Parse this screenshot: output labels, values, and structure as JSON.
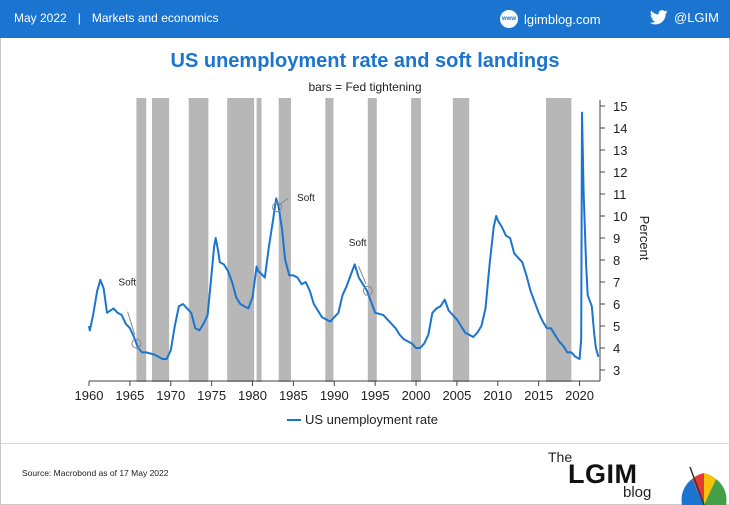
{
  "header": {
    "date": "May 2022",
    "separator": "|",
    "section": "Markets and economics",
    "site_icon": "www-globe-icon",
    "site_label": "lgimblog.com",
    "social_icon": "twitter-bird-icon",
    "social_label": "@LGIM",
    "bar_color": "#1b75d0"
  },
  "chart_data": {
    "type": "line",
    "title": "US unemployment rate and soft landings",
    "subtitle": "bars = Fed tightening",
    "ylabel": "Percent",
    "xlabel": "",
    "xlim": [
      1960,
      2022.5
    ],
    "ylim": [
      3,
      15
    ],
    "x_ticks": [
      1960,
      1965,
      1970,
      1975,
      1980,
      1985,
      1990,
      1995,
      2000,
      2005,
      2010,
      2015,
      2020
    ],
    "y_ticks": [
      3,
      4,
      5,
      6,
      7,
      8,
      9,
      10,
      11,
      12,
      13,
      14,
      15
    ],
    "y_axis_side": "right",
    "grid": false,
    "legend_position": "bottom-center",
    "line_color": "#1b75d0",
    "bar_color": "#b7b7b7",
    "tightening_periods": [
      [
        1965.8,
        1967.0
      ],
      [
        1967.7,
        1969.8
      ],
      [
        1972.2,
        1974.6
      ],
      [
        1976.9,
        1980.2
      ],
      [
        1980.5,
        1981.1
      ],
      [
        1983.2,
        1984.7
      ],
      [
        1988.9,
        1989.9
      ],
      [
        1994.1,
        1995.2
      ],
      [
        1999.4,
        2000.6
      ],
      [
        2004.5,
        2006.5
      ],
      [
        2015.9,
        2019.0
      ]
    ],
    "annotations": [
      {
        "label": "Soft",
        "x": 1965.8,
        "y": 4.2
      },
      {
        "label": "Soft",
        "x": 1983.0,
        "y": 10.4
      },
      {
        "label": "Soft",
        "x": 1994.1,
        "y": 6.6
      }
    ],
    "series": [
      {
        "name": "US unemployment rate",
        "points": [
          [
            1960.0,
            5.0
          ],
          [
            1960.1,
            4.8
          ],
          [
            1960.5,
            5.5
          ],
          [
            1961.0,
            6.6
          ],
          [
            1961.4,
            7.1
          ],
          [
            1961.8,
            6.7
          ],
          [
            1962.2,
            5.6
          ],
          [
            1963.0,
            5.8
          ],
          [
            1963.5,
            5.6
          ],
          [
            1964.0,
            5.5
          ],
          [
            1964.5,
            5.1
          ],
          [
            1965.0,
            4.9
          ],
          [
            1965.5,
            4.5
          ],
          [
            1966.0,
            4.0
          ],
          [
            1966.5,
            3.8
          ],
          [
            1967.0,
            3.8
          ],
          [
            1968.0,
            3.7
          ],
          [
            1969.0,
            3.5
          ],
          [
            1969.5,
            3.5
          ],
          [
            1970.0,
            3.9
          ],
          [
            1970.5,
            5.0
          ],
          [
            1971.0,
            5.9
          ],
          [
            1971.5,
            6.0
          ],
          [
            1972.0,
            5.8
          ],
          [
            1972.5,
            5.6
          ],
          [
            1973.0,
            4.9
          ],
          [
            1973.5,
            4.8
          ],
          [
            1974.0,
            5.1
          ],
          [
            1974.5,
            5.5
          ],
          [
            1974.9,
            7.0
          ],
          [
            1975.3,
            8.6
          ],
          [
            1975.5,
            9.0
          ],
          [
            1975.8,
            8.4
          ],
          [
            1976.0,
            7.9
          ],
          [
            1976.5,
            7.8
          ],
          [
            1977.0,
            7.5
          ],
          [
            1977.5,
            7.0
          ],
          [
            1978.0,
            6.3
          ],
          [
            1978.5,
            6.0
          ],
          [
            1979.0,
            5.9
          ],
          [
            1979.5,
            5.8
          ],
          [
            1980.0,
            6.3
          ],
          [
            1980.5,
            7.7
          ],
          [
            1980.7,
            7.5
          ],
          [
            1981.0,
            7.4
          ],
          [
            1981.5,
            7.2
          ],
          [
            1982.0,
            8.6
          ],
          [
            1982.5,
            9.8
          ],
          [
            1982.9,
            10.8
          ],
          [
            1983.2,
            10.4
          ],
          [
            1983.6,
            9.4
          ],
          [
            1984.0,
            8.0
          ],
          [
            1984.5,
            7.3
          ],
          [
            1985.0,
            7.3
          ],
          [
            1985.5,
            7.2
          ],
          [
            1986.0,
            6.9
          ],
          [
            1986.5,
            7.0
          ],
          [
            1987.0,
            6.6
          ],
          [
            1987.5,
            6.0
          ],
          [
            1988.0,
            5.7
          ],
          [
            1988.5,
            5.4
          ],
          [
            1989.0,
            5.3
          ],
          [
            1989.5,
            5.2
          ],
          [
            1990.0,
            5.4
          ],
          [
            1990.5,
            5.6
          ],
          [
            1991.0,
            6.4
          ],
          [
            1991.5,
            6.8
          ],
          [
            1992.0,
            7.3
          ],
          [
            1992.5,
            7.8
          ],
          [
            1993.0,
            7.2
          ],
          [
            1993.5,
            6.9
          ],
          [
            1994.0,
            6.6
          ],
          [
            1994.5,
            6.1
          ],
          [
            1995.0,
            5.6
          ],
          [
            1996.0,
            5.5
          ],
          [
            1996.5,
            5.3
          ],
          [
            1997.0,
            5.1
          ],
          [
            1997.5,
            4.9
          ],
          [
            1998.0,
            4.6
          ],
          [
            1998.5,
            4.4
          ],
          [
            1999.0,
            4.3
          ],
          [
            1999.5,
            4.2
          ],
          [
            2000.0,
            4.0
          ],
          [
            2000.5,
            4.0
          ],
          [
            2001.0,
            4.2
          ],
          [
            2001.5,
            4.6
          ],
          [
            2002.0,
            5.6
          ],
          [
            2002.5,
            5.8
          ],
          [
            2003.0,
            5.9
          ],
          [
            2003.5,
            6.2
          ],
          [
            2004.0,
            5.7
          ],
          [
            2004.5,
            5.5
          ],
          [
            2005.0,
            5.3
          ],
          [
            2005.5,
            5.0
          ],
          [
            2006.0,
            4.7
          ],
          [
            2006.5,
            4.6
          ],
          [
            2007.0,
            4.5
          ],
          [
            2007.5,
            4.7
          ],
          [
            2008.0,
            5.0
          ],
          [
            2008.5,
            5.8
          ],
          [
            2009.0,
            7.8
          ],
          [
            2009.5,
            9.5
          ],
          [
            2009.8,
            10.0
          ],
          [
            2010.0,
            9.8
          ],
          [
            2010.5,
            9.5
          ],
          [
            2011.0,
            9.1
          ],
          [
            2011.5,
            9.0
          ],
          [
            2012.0,
            8.3
          ],
          [
            2012.5,
            8.1
          ],
          [
            2013.0,
            7.9
          ],
          [
            2013.5,
            7.3
          ],
          [
            2014.0,
            6.6
          ],
          [
            2014.5,
            6.1
          ],
          [
            2015.0,
            5.6
          ],
          [
            2015.5,
            5.2
          ],
          [
            2016.0,
            4.9
          ],
          [
            2016.5,
            4.9
          ],
          [
            2017.0,
            4.6
          ],
          [
            2017.5,
            4.3
          ],
          [
            2018.0,
            4.1
          ],
          [
            2018.5,
            3.8
          ],
          [
            2019.0,
            3.8
          ],
          [
            2019.5,
            3.6
          ],
          [
            2020.0,
            3.5
          ],
          [
            2020.2,
            4.4
          ],
          [
            2020.3,
            14.7
          ],
          [
            2020.5,
            11.1
          ],
          [
            2020.8,
            7.8
          ],
          [
            2021.0,
            6.4
          ],
          [
            2021.5,
            5.9
          ],
          [
            2021.8,
            4.6
          ],
          [
            2022.0,
            4.0
          ],
          [
            2022.3,
            3.6
          ]
        ]
      }
    ]
  },
  "footer": {
    "source": "Source: Macrobond as of 17 May 2022",
    "logo_the": "The",
    "logo_lgim": "LGIM",
    "logo_blog": "blog"
  }
}
